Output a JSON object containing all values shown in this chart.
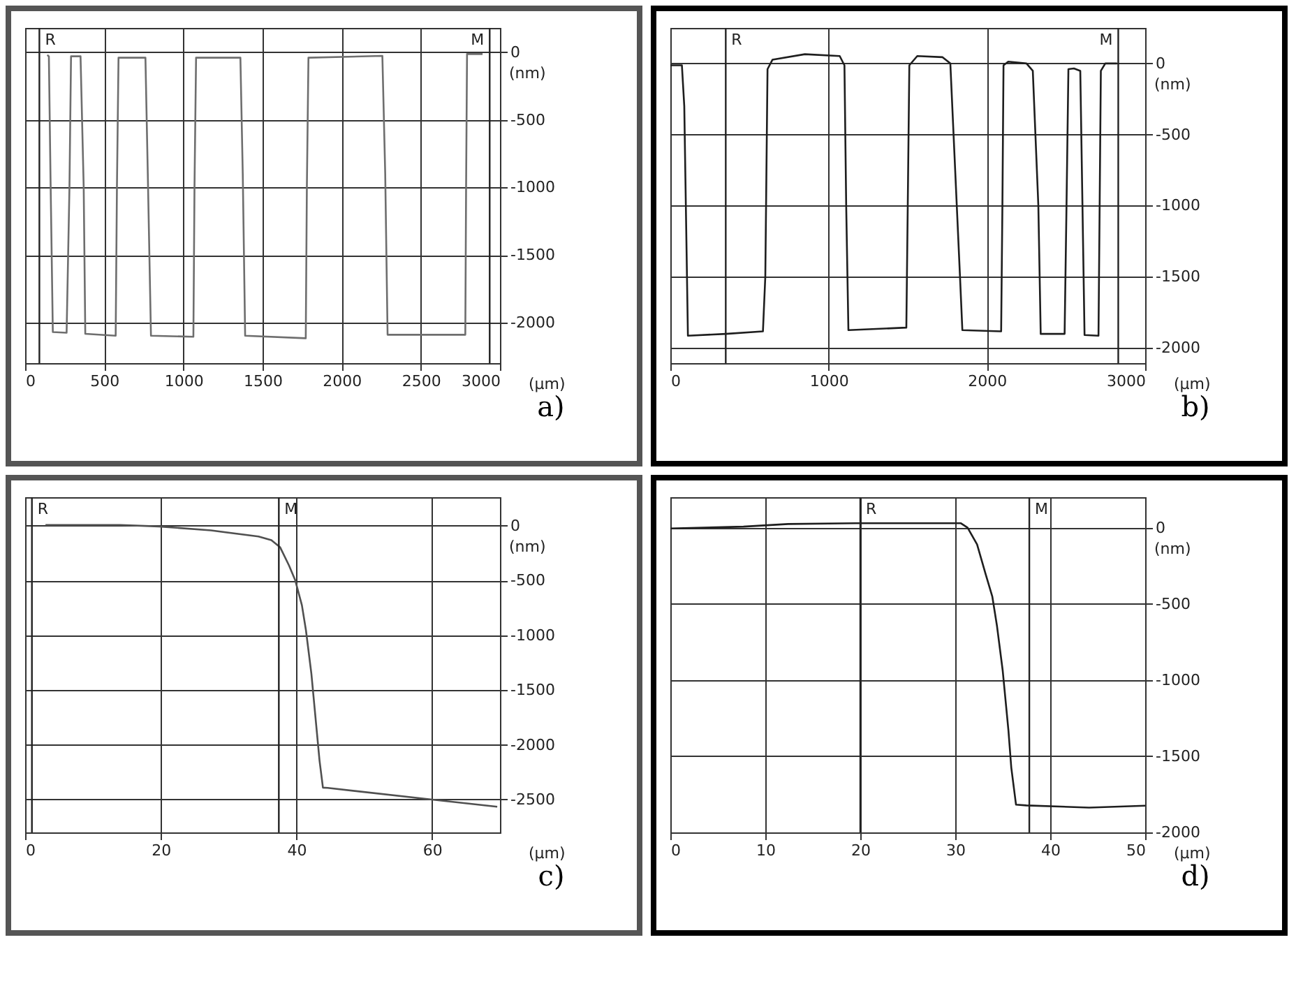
{
  "chart_data": [
    {
      "type": "line",
      "title": "a)",
      "xlabel": "(µm)",
      "ylabel": "(nm)",
      "color": "#6e6e6e",
      "grid": true,
      "xlim": [
        0,
        3000
      ],
      "ylim": [
        -2300,
        180
      ],
      "xticks": [
        0,
        500,
        1000,
        1500,
        2000,
        2500,
        3000
      ],
      "yticks": [
        0,
        -500,
        -1000,
        -1500,
        -2000
      ],
      "ref_lines": [
        {
          "axis": "x",
          "value": 90,
          "label": "R"
        },
        {
          "axis": "x",
          "value": 2935,
          "label": "M"
        }
      ],
      "x": [
        140,
        150,
        160,
        175,
        262,
        280,
        290,
        350,
        370,
        380,
        572,
        580,
        590,
        760,
        775,
        795,
        1063,
        1070,
        1080,
        1360,
        1375,
        1390,
        1773,
        1780,
        1790,
        2257,
        2275,
        2290,
        2781,
        2786,
        2792,
        2890
      ],
      "values": [
        -20,
        -30,
        -900,
        -2070,
        -2075,
        -1000,
        -30,
        -30,
        -1000,
        -2083,
        -2097,
        -1000,
        -40,
        -40,
        -900,
        -2097,
        -2105,
        -1000,
        -40,
        -40,
        -900,
        -2097,
        -2116,
        -1000,
        -40,
        -27,
        -900,
        -2090,
        -2090,
        -1000,
        -13,
        -13
      ]
    },
    {
      "type": "line",
      "title": "b)",
      "xlabel": "(µm)",
      "ylabel": "(nm)",
      "color": "#1e1e1e",
      "grid": true,
      "xlim": [
        0,
        3000
      ],
      "ylim": [
        -2110,
        250
      ],
      "xticks": [
        0,
        1000,
        2000,
        3000
      ],
      "yticks": [
        0,
        -500,
        -1000,
        -1500,
        -2000
      ],
      "ref_lines": [
        {
          "axis": "x",
          "value": 350,
          "label": "R"
        },
        {
          "axis": "x",
          "value": 2830,
          "label": "M"
        }
      ],
      "x": [
        0,
        73,
        88,
        111,
        350,
        585,
        600,
        614,
        645,
        850,
        1070,
        1100,
        1111,
        1125,
        1491,
        1500,
        1510,
        1560,
        1720,
        1769,
        1830,
        1845,
        2090,
        2098,
        2105,
        2135,
        2250,
        2290,
        2325,
        2340,
        2491,
        2503,
        2515,
        2550,
        2590,
        2617,
        2705,
        2720,
        2748,
        2822
      ],
      "values": [
        -13,
        -13,
        -300,
        -1917,
        -1904,
        -1886,
        -1500,
        -40,
        26,
        65,
        52,
        -13,
        -1000,
        -1878,
        -1860,
        -1000,
        -13,
        52,
        44,
        0,
        -1500,
        -1878,
        -1886,
        -1000,
        -13,
        13,
        0,
        -52,
        -1000,
        -1904,
        -1904,
        -1000,
        -40,
        -35,
        -52,
        -1912,
        -1917,
        -52,
        0,
        0
      ]
    },
    {
      "type": "line",
      "title": "c)",
      "xlabel": "(µm)",
      "ylabel": "(nm)",
      "color": "#505050",
      "grid": true,
      "xlim": [
        0,
        70
      ],
      "ylim": [
        -2800,
        260
      ],
      "xticks": [
        0,
        20,
        40,
        60
      ],
      "yticks": [
        0,
        -500,
        -1000,
        -1500,
        -2000,
        -2500
      ],
      "ref_lines": [
        {
          "axis": "x",
          "value": 1,
          "label": "R"
        },
        {
          "axis": "x",
          "value": 37.4,
          "label": "M"
        }
      ],
      "x": [
        3,
        14,
        19.7,
        27.4,
        34.4,
        36.3,
        37.6,
        38.9,
        39.8,
        40.8,
        41.4,
        42.2,
        42.9,
        43.4,
        43.9,
        44.6,
        60,
        69.6
      ],
      "values": [
        7,
        7,
        -7,
        -43,
        -99,
        -132,
        -198,
        -363,
        -495,
        -726,
        -956,
        -1352,
        -1814,
        -2144,
        -2391,
        -2394,
        -2500,
        -2566
      ]
    },
    {
      "type": "line",
      "title": "d)",
      "xlabel": "(µm)",
      "ylabel": "(nm)",
      "color": "#1e1e1e",
      "grid": true,
      "xlim": [
        0,
        50
      ],
      "ylim": [
        -2000,
        200
      ],
      "xticks": [
        0,
        10,
        20,
        30,
        40,
        50
      ],
      "yticks": [
        0,
        -500,
        -1000,
        -1500,
        -2000
      ],
      "ref_lines": [
        {
          "axis": "x",
          "value": 20,
          "label": "R"
        },
        {
          "axis": "x",
          "value": 37.8,
          "label": "M"
        }
      ],
      "x": [
        0,
        7.7,
        12.4,
        19.5,
        30.6,
        31.3,
        32.3,
        33.2,
        33.9,
        34.4,
        35,
        35.6,
        35.9,
        36.4,
        37.5,
        44.1,
        50
      ],
      "values": [
        -5,
        7,
        24,
        29,
        29,
        0,
        -110,
        -305,
        -451,
        -647,
        -939,
        -1330,
        -1574,
        -1818,
        -1823,
        -1837,
        -1825
      ]
    }
  ]
}
